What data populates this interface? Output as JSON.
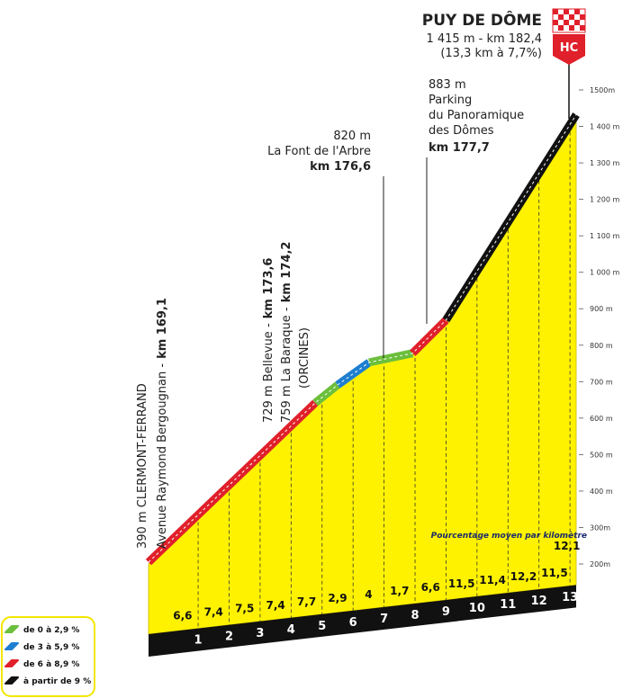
{
  "chart_data": {
    "type": "area",
    "title": "PUY DE DÔME",
    "subtitle": "1 415 m - km 182,4",
    "subtitle2": "(13,3 km à 7,7%)",
    "badge": "HC",
    "x": [
      -0.6,
      4.78,
      5.5,
      6.52,
      7.92,
      9.0,
      13.2
    ],
    "values": [
      200,
      637,
      686,
      748,
      773,
      864,
      1427
    ],
    "segment_colors": [
      "#e0202a",
      "#6cbf3c",
      "#1e7fd0",
      "#6cbf3c",
      "#e0202a",
      "#111111"
    ],
    "fill": "#fff200",
    "xlim": [
      -0.6,
      13.2
    ],
    "xticks": [
      1,
      2,
      3,
      4,
      5,
      6,
      7,
      8,
      9,
      10,
      11,
      12,
      13
    ],
    "ylim": [
      200,
      1500
    ],
    "yticks": [
      {
        "value": 200,
        "label": "200m"
      },
      {
        "value": 300,
        "label": "300m"
      },
      {
        "value": 400,
        "label": "400 m"
      },
      {
        "value": 500,
        "label": "500 m"
      },
      {
        "value": 600,
        "label": "600 m"
      },
      {
        "value": 700,
        "label": "700 m"
      },
      {
        "value": 800,
        "label": "800 m"
      },
      {
        "value": 900,
        "label": "900 m"
      },
      {
        "value": 1000,
        "label": "1 000 m"
      },
      {
        "value": 1100,
        "label": "1 100 m"
      },
      {
        "value": 1200,
        "label": "1 200 m"
      },
      {
        "value": 1300,
        "label": "1 300 m"
      },
      {
        "value": 1400,
        "label": "1 400 m"
      },
      {
        "value": 1500,
        "label": "1500m"
      }
    ],
    "gradients": {
      "label": "Pourcentage moyen par kilomètre",
      "values": [
        6.6,
        7.4,
        7.5,
        7.4,
        7.7,
        2.9,
        4,
        1.7,
        6.6,
        11.5,
        11.4,
        12.2,
        11.5,
        12.1
      ],
      "value_labels": [
        "6,6",
        "7,4",
        "7,5",
        "7,4",
        "7,7",
        "2,9",
        "4",
        "1,7",
        "6,6",
        "11,5",
        "11,4",
        "12,2",
        "11,5",
        "12,1"
      ]
    },
    "annotations": {
      "clermont": {
        "line1": "390 m CLERMONT-FERRAND",
        "line2": "Avenue Raymond Bergougnan -",
        "km": "km 169,1"
      },
      "bellevue": {
        "line1": "729 m Bellevue -",
        "km1": "km 173,6",
        "line2": "759 m La Baraque -",
        "km2": "km 174,2",
        "line3": "(ORCINES)"
      },
      "font": {
        "alt": "820 m",
        "name": "La Font de l'Arbre",
        "km": "km 176,6"
      },
      "parking": {
        "alt": "883 m",
        "l1": "Parking",
        "l2": "du Panoramique",
        "l3": "des Dômes",
        "km": "km 177,7"
      }
    },
    "legend": [
      {
        "name": "de 0 à 2,9 %",
        "color": "#6cbf3c"
      },
      {
        "name": "de 3 à 5,9 %",
        "color": "#1e7fd0"
      },
      {
        "name": "de 6 à 8,9 %",
        "color": "#e0202a"
      },
      {
        "name": "à partir de 9 %",
        "color": "#111111"
      }
    ]
  }
}
